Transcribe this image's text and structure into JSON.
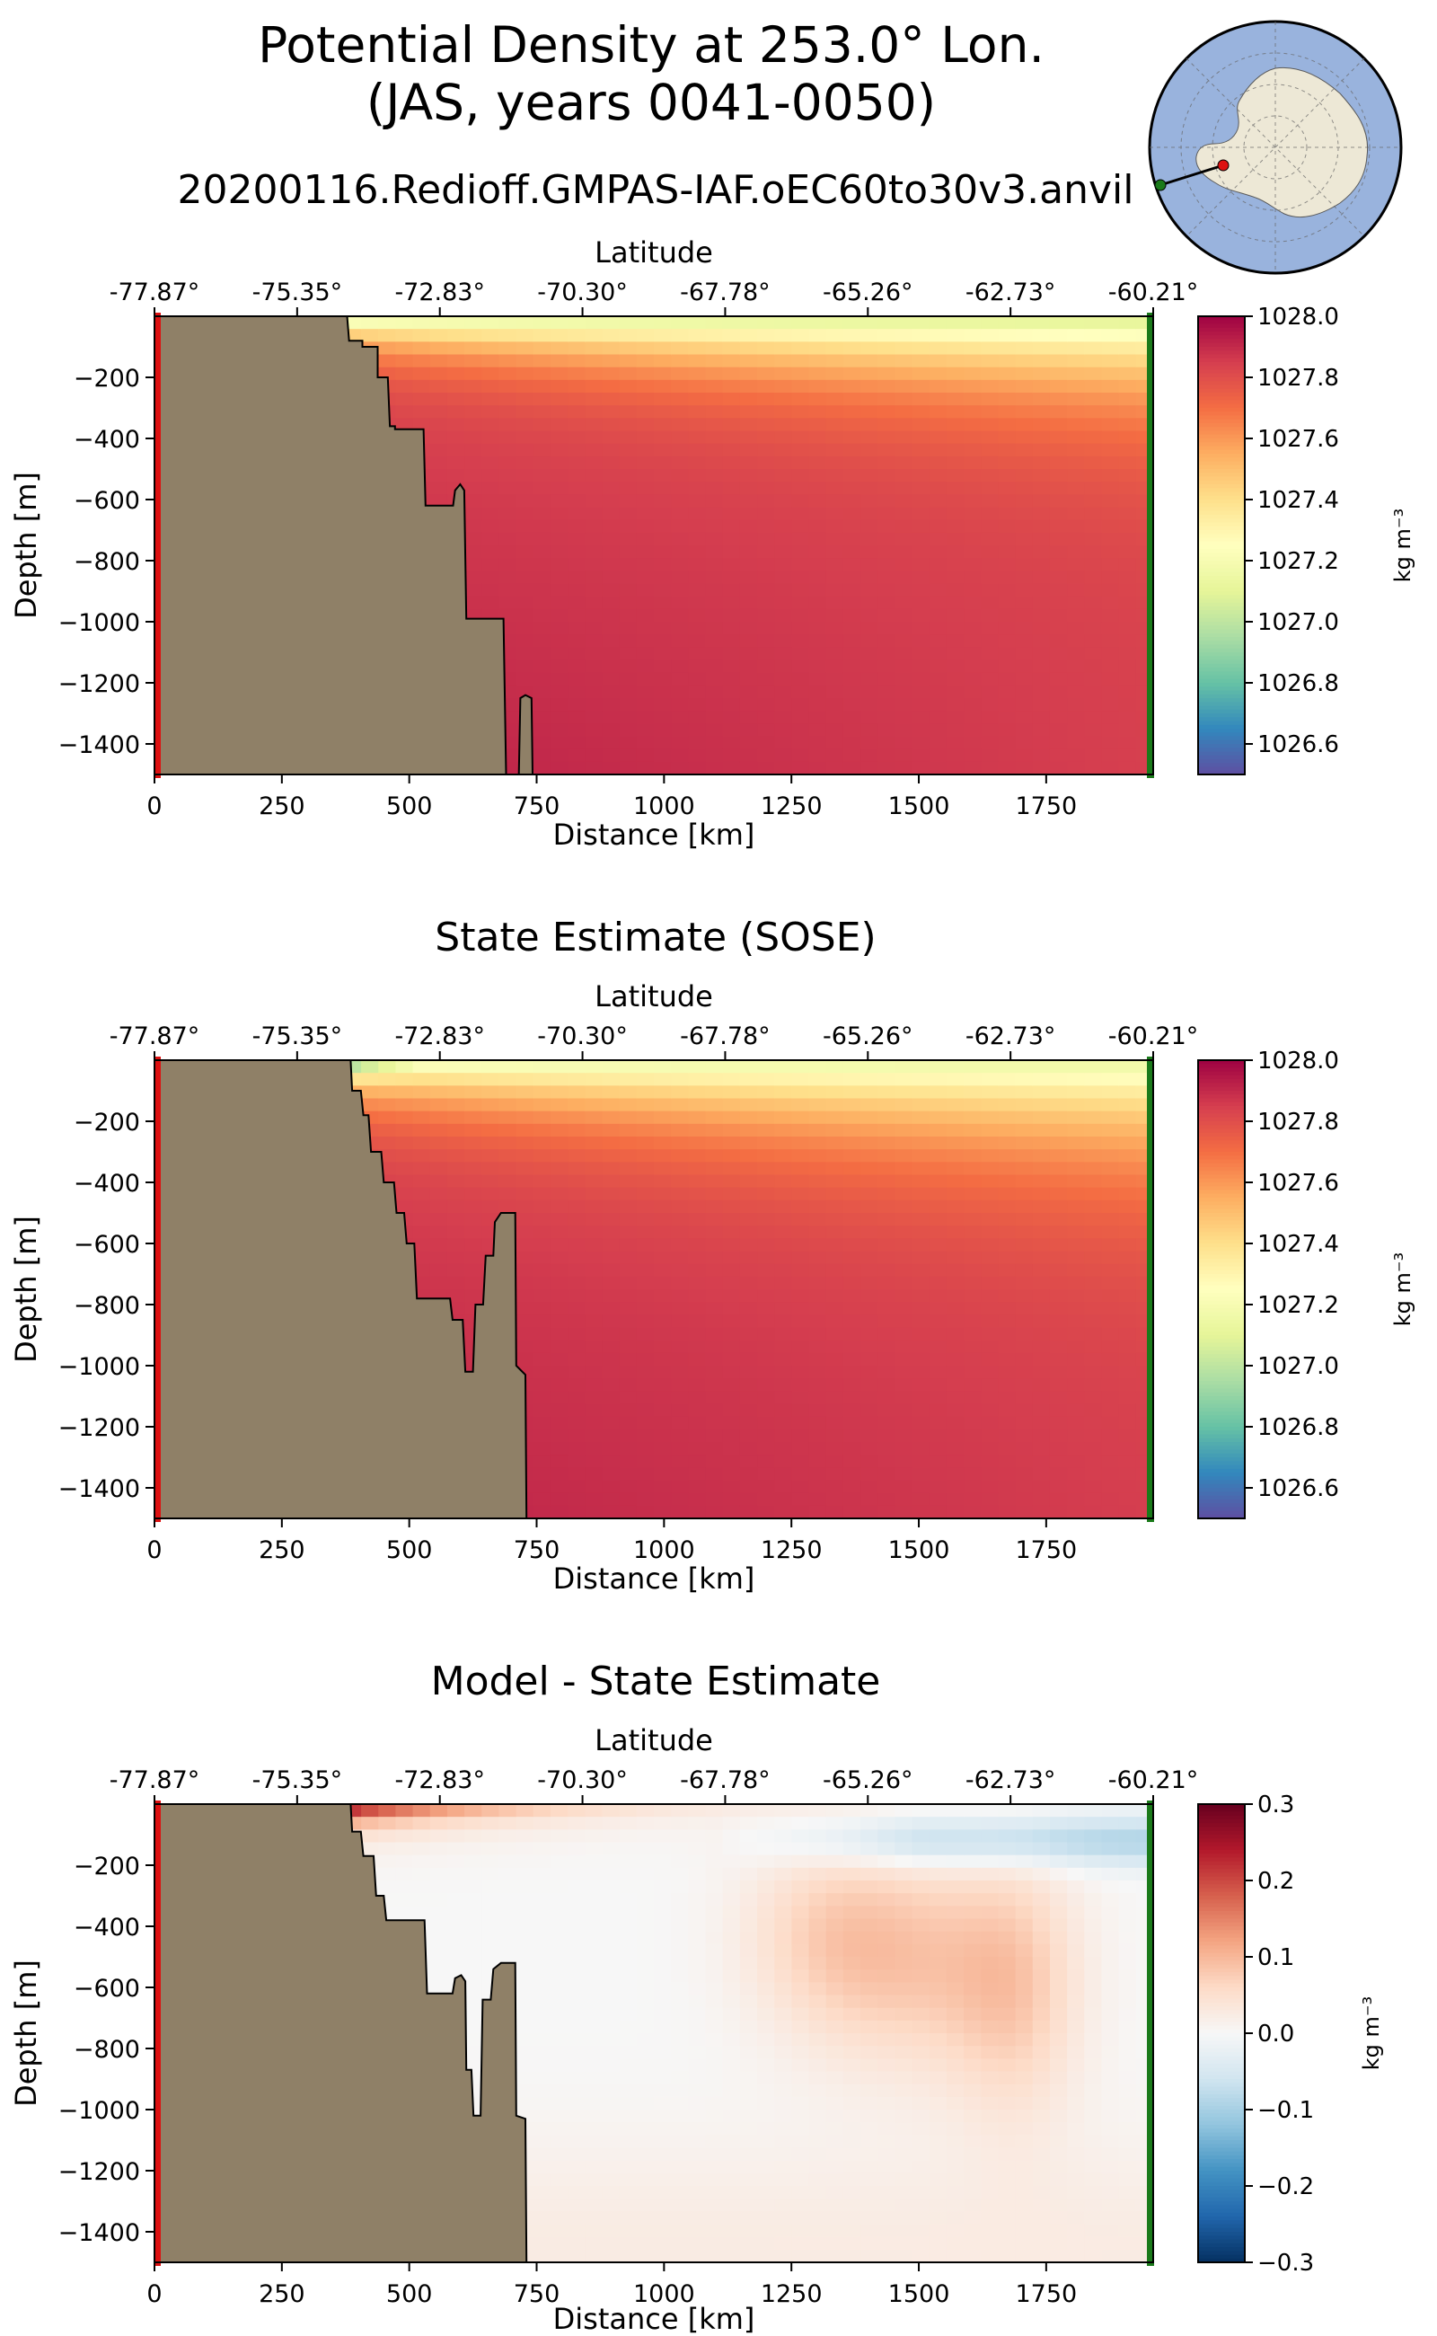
{
  "header": {
    "title_line1": "Potential Density at 253.0° Lon.",
    "title_line2": "(JAS, years 0041-0050)",
    "run_name": "20200116.Redioff.GMPAS-IAF.oEC60to30v3.anvil"
  },
  "colors": {
    "land": "#8f8067",
    "left_marker": "#dd1111",
    "right_marker": "#1a7a1a",
    "ocean_map": "#99b3dd",
    "antarctica": "#ede8d6"
  },
  "chart_data": [
    {
      "id": "model",
      "type": "heatmap",
      "title": "",
      "xlabel": "Distance [km]",
      "ylabel": "Depth [m]",
      "top_axis_label": "Latitude",
      "xlim": [
        0,
        1960
      ],
      "ylim": [
        -1500,
        0
      ],
      "xticks": [
        0,
        250,
        500,
        750,
        1000,
        1250,
        1500,
        1750
      ],
      "yticks": [
        -200,
        -400,
        -600,
        -800,
        -1000,
        -1200,
        -1400
      ],
      "lat_tick_positions_km": [
        0,
        280,
        560,
        840,
        1120,
        1400,
        1680,
        1960
      ],
      "lat_tick_labels": [
        "-77.87°",
        "-75.35°",
        "-72.83°",
        "-70.30°",
        "-67.78°",
        "-65.26°",
        "-62.73°",
        "-60.21°"
      ],
      "colorbar": {
        "colormap": "Spectral_r",
        "vmin": 1026.5,
        "vmax": 1028.0,
        "ticks": [
          1026.6,
          1026.8,
          1027.0,
          1027.2,
          1027.4,
          1027.6,
          1027.8,
          1028.0
        ],
        "tick_labels": [
          "1026.6",
          "1026.8",
          "1027.0",
          "1027.2",
          "1027.4",
          "1027.6",
          "1027.8",
          "1028.0"
        ],
        "label": "kg m⁻³"
      },
      "bathymetry": [
        [
          0,
          0
        ],
        [
          378,
          0
        ],
        [
          382,
          -80
        ],
        [
          408,
          -80
        ],
        [
          408,
          -100
        ],
        [
          438,
          -100
        ],
        [
          438,
          -200
        ],
        [
          458,
          -200
        ],
        [
          462,
          -360
        ],
        [
          472,
          -360
        ],
        [
          472,
          -370
        ],
        [
          528,
          -370
        ],
        [
          532,
          -620
        ],
        [
          586,
          -620
        ],
        [
          590,
          -570
        ],
        [
          600,
          -550
        ],
        [
          608,
          -570
        ],
        [
          612,
          -990
        ],
        [
          685,
          -990
        ],
        [
          690,
          -1500
        ],
        [
          715,
          -1500
        ],
        [
          718,
          -1250
        ],
        [
          728,
          -1240
        ],
        [
          740,
          -1250
        ],
        [
          742,
          -1500
        ]
      ]
    },
    {
      "id": "sose",
      "type": "heatmap",
      "title": "State Estimate (SOSE)",
      "xlabel": "Distance [km]",
      "ylabel": "Depth [m]",
      "top_axis_label": "Latitude",
      "xlim": [
        0,
        1960
      ],
      "ylim": [
        -1500,
        0
      ],
      "xticks": [
        0,
        250,
        500,
        750,
        1000,
        1250,
        1500,
        1750
      ],
      "yticks": [
        -200,
        -400,
        -600,
        -800,
        -1000,
        -1200,
        -1400
      ],
      "lat_tick_positions_km": [
        0,
        280,
        560,
        840,
        1120,
        1400,
        1680,
        1960
      ],
      "lat_tick_labels": [
        "-77.87°",
        "-75.35°",
        "-72.83°",
        "-70.30°",
        "-67.78°",
        "-65.26°",
        "-62.73°",
        "-60.21°"
      ],
      "colorbar": {
        "colormap": "Spectral_r",
        "vmin": 1026.5,
        "vmax": 1028.0,
        "ticks": [
          1026.6,
          1026.8,
          1027.0,
          1027.2,
          1027.4,
          1027.6,
          1027.8,
          1028.0
        ],
        "tick_labels": [
          "1026.6",
          "1026.8",
          "1027.0",
          "1027.2",
          "1027.4",
          "1027.6",
          "1027.8",
          "1028.0"
        ],
        "label": "kg m⁻³"
      },
      "bathymetry": [
        [
          0,
          0
        ],
        [
          385,
          0
        ],
        [
          388,
          -100
        ],
        [
          405,
          -100
        ],
        [
          410,
          -180
        ],
        [
          420,
          -180
        ],
        [
          425,
          -300
        ],
        [
          445,
          -300
        ],
        [
          450,
          -400
        ],
        [
          470,
          -400
        ],
        [
          475,
          -500
        ],
        [
          490,
          -500
        ],
        [
          495,
          -600
        ],
        [
          510,
          -600
        ],
        [
          515,
          -780
        ],
        [
          580,
          -780
        ],
        [
          585,
          -850
        ],
        [
          605,
          -850
        ],
        [
          610,
          -1020
        ],
        [
          625,
          -1020
        ],
        [
          630,
          -800
        ],
        [
          645,
          -800
        ],
        [
          650,
          -640
        ],
        [
          665,
          -640
        ],
        [
          668,
          -530
        ],
        [
          680,
          -500
        ],
        [
          708,
          -500
        ],
        [
          710,
          -1000
        ],
        [
          728,
          -1030
        ],
        [
          730,
          -1500
        ]
      ]
    },
    {
      "id": "bias",
      "type": "heatmap",
      "title": "Model - State Estimate",
      "xlabel": "Distance [km]",
      "ylabel": "Depth [m]",
      "top_axis_label": "Latitude",
      "xlim": [
        0,
        1960
      ],
      "ylim": [
        -1500,
        0
      ],
      "xticks": [
        0,
        250,
        500,
        750,
        1000,
        1250,
        1500,
        1750
      ],
      "yticks": [
        -200,
        -400,
        -600,
        -800,
        -1000,
        -1200,
        -1400
      ],
      "lat_tick_positions_km": [
        0,
        280,
        560,
        840,
        1120,
        1400,
        1680,
        1960
      ],
      "lat_tick_labels": [
        "-77.87°",
        "-75.35°",
        "-72.83°",
        "-70.30°",
        "-67.78°",
        "-65.26°",
        "-62.73°",
        "-60.21°"
      ],
      "colorbar": {
        "colormap": "RdBu_r",
        "vmin": -0.3,
        "vmax": 0.3,
        "ticks": [
          -0.3,
          -0.2,
          -0.1,
          0.0,
          0.1,
          0.2,
          0.3
        ],
        "tick_labels": [
          "−0.3",
          "−0.2",
          "−0.1",
          "0.0",
          "0.1",
          "0.2",
          "0.3"
        ],
        "label": "kg m⁻³"
      },
      "bathymetry": [
        [
          0,
          0
        ],
        [
          385,
          0
        ],
        [
          388,
          -90
        ],
        [
          405,
          -90
        ],
        [
          410,
          -170
        ],
        [
          430,
          -170
        ],
        [
          435,
          -300
        ],
        [
          450,
          -300
        ],
        [
          455,
          -380
        ],
        [
          530,
          -380
        ],
        [
          535,
          -620
        ],
        [
          585,
          -620
        ],
        [
          590,
          -570
        ],
        [
          602,
          -560
        ],
        [
          610,
          -580
        ],
        [
          612,
          -870
        ],
        [
          622,
          -870
        ],
        [
          626,
          -1020
        ],
        [
          640,
          -1020
        ],
        [
          644,
          -640
        ],
        [
          660,
          -640
        ],
        [
          665,
          -540
        ],
        [
          680,
          -520
        ],
        [
          708,
          -520
        ],
        [
          710,
          -1020
        ],
        [
          728,
          -1030
        ],
        [
          730,
          -1500
        ]
      ]
    }
  ]
}
